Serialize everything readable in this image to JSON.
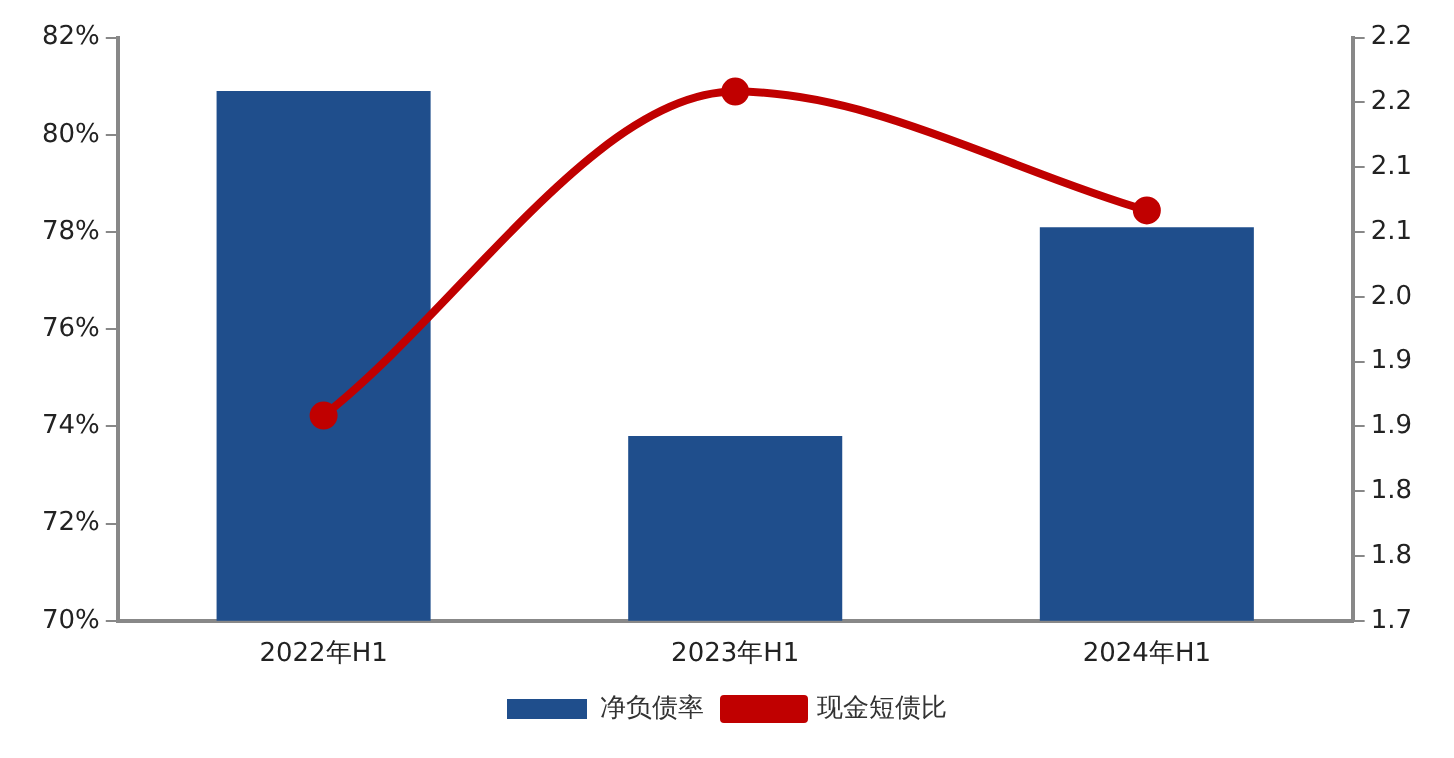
{
  "chart_data": {
    "type": "bar",
    "categories": [
      "2022年H1",
      "2023年H1",
      "2024年H1"
    ],
    "series": [
      {
        "name": "净负债率",
        "color": "#1f4e8c",
        "values": [
          80.9,
          73.8,
          78.1
        ]
      },
      {
        "name": "现金短债比",
        "type": "line",
        "axis": "y2",
        "color": "#c00000",
        "values": [
          1.89,
          2.19,
          2.08
        ]
      }
    ],
    "ylim": [
      70,
      82
    ],
    "yticks": [
      {
        "value": 70,
        "label": "70%"
      },
      {
        "value": 72,
        "label": "72%"
      },
      {
        "value": 74,
        "label": "74%"
      },
      {
        "value": 76,
        "label": "76%"
      },
      {
        "value": 78,
        "label": "78%"
      },
      {
        "value": 80,
        "label": "80%"
      },
      {
        "value": 82,
        "label": "82%"
      }
    ],
    "y2lim": [
      1.7,
      2.24
    ],
    "y2ticks": [
      {
        "value": 1.7,
        "label": "1.7"
      },
      {
        "value": 1.76,
        "label": "1.8"
      },
      {
        "value": 1.82,
        "label": "1.8"
      },
      {
        "value": 1.88,
        "label": "1.9"
      },
      {
        "value": 1.94,
        "label": "1.9"
      },
      {
        "value": 2.0,
        "label": "2.0"
      },
      {
        "value": 2.06,
        "label": "2.1"
      },
      {
        "value": 2.12,
        "label": "2.1"
      },
      {
        "value": 2.18,
        "label": "2.2"
      },
      {
        "value": 2.24,
        "label": "2.2"
      }
    ],
    "grid": false,
    "legend": "bottom",
    "marker": "circle",
    "line_style": "solid"
  }
}
